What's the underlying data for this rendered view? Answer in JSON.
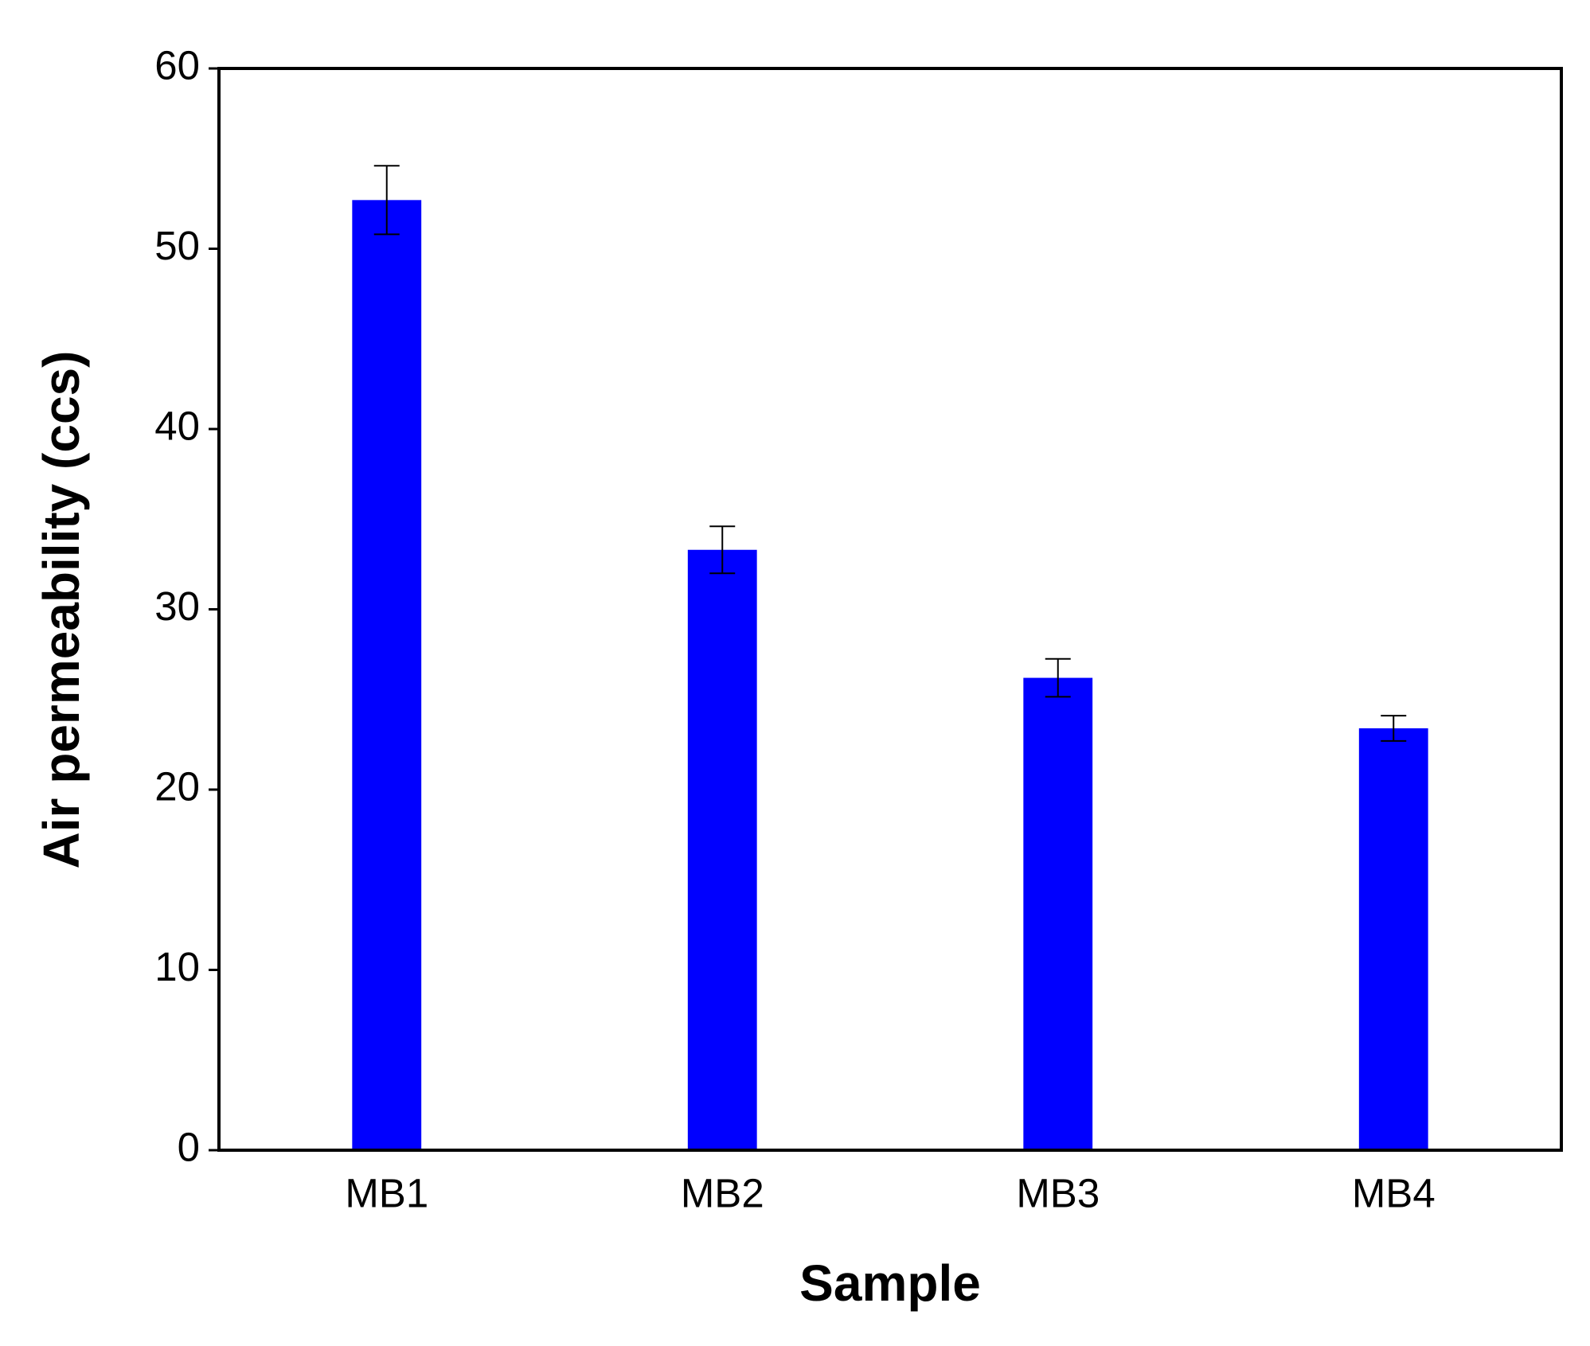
{
  "chart_data": {
    "type": "bar",
    "xlabel": "Sample",
    "ylabel": "Air permeability (ccs)",
    "categories": [
      "MB1",
      "MB2",
      "MB3",
      "MB4"
    ],
    "values": [
      52.7,
      33.3,
      26.2,
      23.4
    ],
    "errors": [
      1.9,
      1.3,
      1.05,
      0.7
    ],
    "color": "#0000ff",
    "ylim": [
      0,
      60
    ],
    "yticks": [
      0,
      10,
      20,
      30,
      40,
      50,
      60
    ],
    "grid": false
  }
}
